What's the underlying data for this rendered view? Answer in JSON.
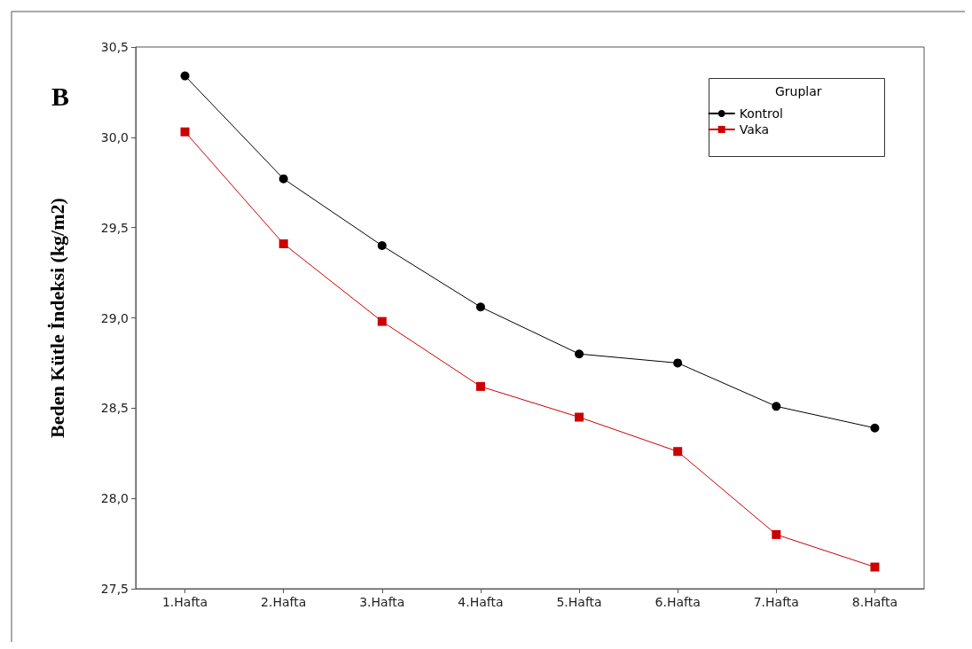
{
  "chart_data": {
    "type": "line",
    "ylabel": "Beden Kütle İndeksi (kg/m2)",
    "legend_title": "Gruplar",
    "legend": "top right",
    "annotations": [
      "B"
    ],
    "categories": [
      "1.Hafta",
      "2.Hafta",
      "3.Hafta",
      "4.Hafta",
      "5.Hafta",
      "6.Hafta",
      "7.Hafta",
      "8.Hafta"
    ],
    "ylim": [
      27.5,
      30.5
    ],
    "yticks": [
      {
        "value": 27.5,
        "label": "27,5"
      },
      {
        "value": 28.0,
        "label": "28,0"
      },
      {
        "value": 28.5,
        "label": "28,5"
      },
      {
        "value": 29.0,
        "label": "29,0"
      },
      {
        "value": 29.5,
        "label": "29,5"
      },
      {
        "value": 30.0,
        "label": "30,0"
      },
      {
        "value": 30.5,
        "label": "30,5"
      }
    ],
    "grid": false,
    "series": [
      {
        "name": "Kontrol",
        "color": "#000000",
        "marker": "circle",
        "values": [
          30.34,
          29.77,
          29.4,
          29.06,
          28.8,
          28.75,
          28.51,
          28.39
        ]
      },
      {
        "name": "Vaka",
        "color": "#cc0000",
        "marker": "square",
        "values": [
          30.03,
          29.41,
          28.98,
          28.62,
          28.45,
          28.26,
          27.8,
          27.62
        ]
      }
    ]
  }
}
